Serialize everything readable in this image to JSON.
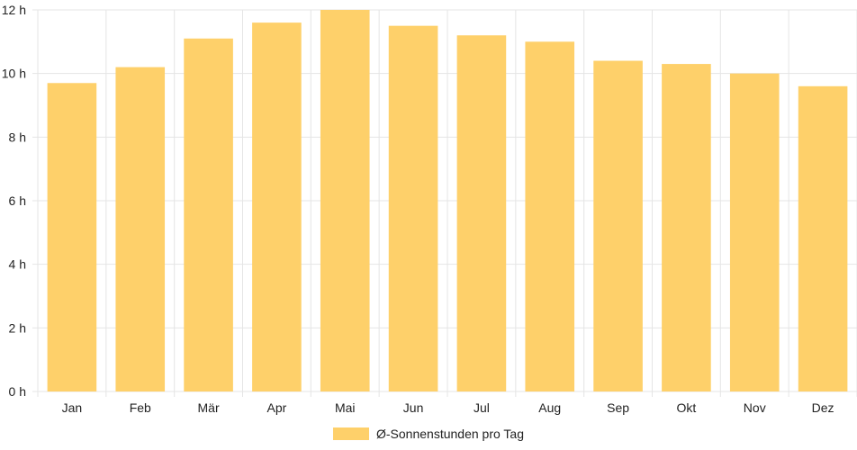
{
  "chart_data": {
    "type": "bar",
    "categories": [
      "Jan",
      "Feb",
      "Mär",
      "Apr",
      "Mai",
      "Jun",
      "Jul",
      "Aug",
      "Sep",
      "Okt",
      "Nov",
      "Dez"
    ],
    "series": [
      {
        "name": "Ø-Sonnenstunden pro Tag",
        "color": "#fed06a",
        "values": [
          9.7,
          10.2,
          11.1,
          11.6,
          12.0,
          11.5,
          11.2,
          11.0,
          10.4,
          10.3,
          10.0,
          9.6
        ]
      }
    ],
    "y_ticks": [
      "0 h",
      "2 h",
      "4 h",
      "6 h",
      "8 h",
      "10 h",
      "12 h"
    ],
    "ylim": [
      0,
      12
    ],
    "grid": true,
    "legend_position": "bottom-center",
    "gridline_color": "#e5e5e5"
  }
}
